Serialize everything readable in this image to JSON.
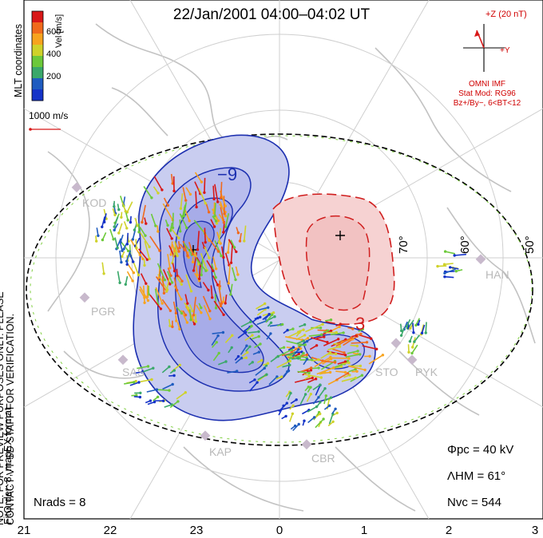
{
  "title": "22/Jan/2001 04:00–04:02 UT",
  "side_notes": {
    "preview_note": "NOTE: FOR PREVIEW PURPOSES ONLY. PLEASE CONTACT VT-SD STAFF FOR VERIFICATION.",
    "fit_note": "FitOrder: 8, mapEX format",
    "coords_note": "MLT coordinates"
  },
  "velocity_scale": {
    "label": "Vel [m/s]",
    "ticks": [
      "600",
      "400",
      "200"
    ],
    "colors": [
      "#d81818",
      "#f06a1c",
      "#f7a31e",
      "#cfd22a",
      "#6cc93a",
      "#3aa86a",
      "#1f5cc0",
      "#1533c8"
    ],
    "reference_vector_label": "1000 m/s"
  },
  "imf": {
    "z_label": "+Z (20 nT)",
    "y_label": "+Y",
    "source": "OMNI IMF",
    "stat_model": "Stat Mod: RG96",
    "condition": "Bz+/By−, 6<BT<12"
  },
  "contours": {
    "min_label": "−9",
    "max_label": "3",
    "negative_color": "#1c2fb0",
    "positive_color": "#d01e1e",
    "negative_fill": "#c9cdf0",
    "positive_fill": "#f6d2d2"
  },
  "stations": [
    "KOD",
    "PGR",
    "SAS",
    "KAP",
    "CBR",
    "STO",
    "PYK",
    "HAN"
  ],
  "latitude_labels": [
    "70°",
    "60°",
    "50°"
  ],
  "mlt_ticks": [
    "21",
    "22",
    "23",
    "0",
    "1",
    "2",
    "3"
  ],
  "stats": {
    "phi_pc": "Φpc = 40 kV",
    "lambda_hm": "ΛHM = 61°",
    "n_vc": "Nvc = 544",
    "n_rads": "Nrads = 8"
  }
}
